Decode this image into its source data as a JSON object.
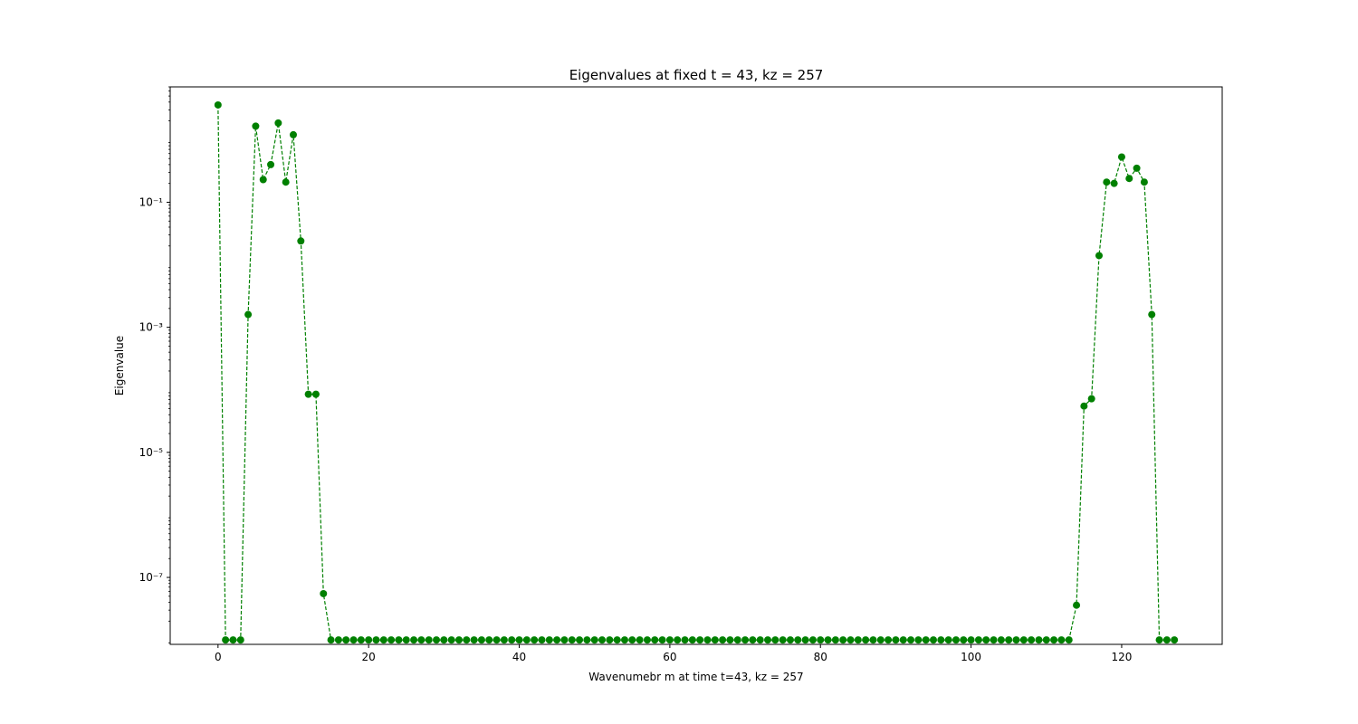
{
  "chart_data": {
    "type": "line",
    "title": "Eigenvalues at fixed t = 43, kz = 257",
    "xlabel": "Wavenumebr m at time t=43, kz = 257",
    "ylabel": "Eigenvalue",
    "xlim": [
      -6.35,
      133.35
    ],
    "ylim": [
      8.5e-09,
      7.0
    ],
    "yscale": "log",
    "grid": false,
    "x_ticks": [
      0,
      20,
      40,
      60,
      80,
      100,
      120
    ],
    "y_ticks": [
      {
        "value": 1e-07,
        "label": "10⁻⁷"
      },
      {
        "value": 1e-05,
        "label": "10⁻⁵"
      },
      {
        "value": 0.001,
        "label": "10⁻³"
      },
      {
        "value": 0.1,
        "label": "10⁻¹"
      }
    ],
    "series": [
      {
        "color": "#008000",
        "line_style": "dashed",
        "marker": "circle",
        "x": [
          0,
          1,
          2,
          3,
          4,
          5,
          6,
          7,
          8,
          9,
          10,
          11,
          12,
          13,
          14,
          15,
          16,
          17,
          18,
          19,
          20,
          21,
          22,
          23,
          24,
          25,
          26,
          27,
          28,
          29,
          30,
          31,
          32,
          33,
          34,
          35,
          36,
          37,
          38,
          39,
          40,
          41,
          42,
          43,
          44,
          45,
          46,
          47,
          48,
          49,
          50,
          51,
          52,
          53,
          54,
          55,
          56,
          57,
          58,
          59,
          60,
          61,
          62,
          63,
          64,
          65,
          66,
          67,
          68,
          69,
          70,
          71,
          72,
          73,
          74,
          75,
          76,
          77,
          78,
          79,
          80,
          81,
          82,
          83,
          84,
          85,
          86,
          87,
          88,
          89,
          90,
          91,
          92,
          93,
          94,
          95,
          96,
          97,
          98,
          99,
          100,
          101,
          102,
          103,
          104,
          105,
          106,
          107,
          108,
          109,
          110,
          111,
          112,
          113,
          114,
          115,
          116,
          117,
          118,
          119,
          120,
          121,
          122,
          123,
          124,
          125,
          126,
          127
        ],
        "values": [
          3.6,
          1e-08,
          1e-08,
          1e-08,
          0.0016,
          1.65,
          0.23,
          0.4,
          1.85,
          0.21,
          1.2,
          0.024,
          8.5e-05,
          8.5e-05,
          5.5e-08,
          1e-08,
          1e-08,
          1e-08,
          1e-08,
          1e-08,
          1e-08,
          1e-08,
          1e-08,
          1e-08,
          1e-08,
          1e-08,
          1e-08,
          1e-08,
          1e-08,
          1e-08,
          1e-08,
          1e-08,
          1e-08,
          1e-08,
          1e-08,
          1e-08,
          1e-08,
          1e-08,
          1e-08,
          1e-08,
          1e-08,
          1e-08,
          1e-08,
          1e-08,
          1e-08,
          1e-08,
          1e-08,
          1e-08,
          1e-08,
          1e-08,
          1e-08,
          1e-08,
          1e-08,
          1e-08,
          1e-08,
          1e-08,
          1e-08,
          1e-08,
          1e-08,
          1e-08,
          1e-08,
          1e-08,
          1e-08,
          1e-08,
          1e-08,
          1e-08,
          1e-08,
          1e-08,
          1e-08,
          1e-08,
          1e-08,
          1e-08,
          1e-08,
          1e-08,
          1e-08,
          1e-08,
          1e-08,
          1e-08,
          1e-08,
          1e-08,
          1e-08,
          1e-08,
          1e-08,
          1e-08,
          1e-08,
          1e-08,
          1e-08,
          1e-08,
          1e-08,
          1e-08,
          1e-08,
          1e-08,
          1e-08,
          1e-08,
          1e-08,
          1e-08,
          1e-08,
          1e-08,
          1e-08,
          1e-08,
          1e-08,
          1e-08,
          1e-08,
          1e-08,
          1e-08,
          1e-08,
          1e-08,
          1e-08,
          1e-08,
          1e-08,
          1e-08,
          1e-08,
          1e-08,
          1e-08,
          3.6e-08,
          5.5e-05,
          7.2e-05,
          0.014,
          0.21,
          0.2,
          0.53,
          0.24,
          0.35,
          0.21,
          0.0016,
          1e-08,
          1e-08,
          1e-08
        ]
      }
    ]
  }
}
